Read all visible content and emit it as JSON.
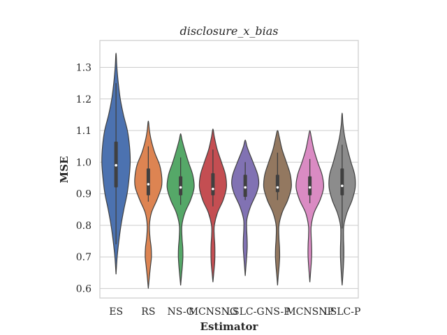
{
  "chart_data": {
    "type": "violin",
    "title": "disclosure_x_bias",
    "xlabel": "Estimator",
    "ylabel": "MSE",
    "ylim": [
      0.57,
      1.385
    ],
    "yticks": [
      0.6,
      0.7,
      0.8,
      0.9,
      1.0,
      1.1,
      1.2,
      1.3
    ],
    "ytick_labels": [
      "0.6",
      "0.7",
      "0.8",
      "0.9",
      "1.0",
      "1.1",
      "1.2",
      "1.3"
    ],
    "grid": true,
    "categories": [
      "ES",
      "RS",
      "NS-G",
      "MCNSNG",
      "LSLC-G",
      "NS-P",
      "MCNSNP",
      "LSLC-P"
    ],
    "colors": [
      "#4c72b0",
      "#dd8452",
      "#55a868",
      "#c44e52",
      "#8172b3",
      "#937860",
      "#da8bc3",
      "#8c8c8c"
    ],
    "violins": [
      {
        "min": 0.645,
        "max": 1.345,
        "q1": 0.92,
        "median": 0.99,
        "q3": 1.065,
        "w_low": 0.74,
        "w_high": 1.25,
        "profile": [
          [
            0.645,
            0.0
          ],
          [
            0.7,
            0.08
          ],
          [
            0.75,
            0.2
          ],
          [
            0.8,
            0.35
          ],
          [
            0.85,
            0.55
          ],
          [
            0.9,
            0.78
          ],
          [
            0.95,
            0.92
          ],
          [
            1.0,
            1.0
          ],
          [
            1.05,
            0.95
          ],
          [
            1.1,
            0.8
          ],
          [
            1.15,
            0.52
          ],
          [
            1.2,
            0.3
          ],
          [
            1.25,
            0.16
          ],
          [
            1.3,
            0.06
          ],
          [
            1.345,
            0.0
          ]
        ]
      },
      {
        "min": 0.6,
        "max": 1.13,
        "q1": 0.895,
        "median": 0.93,
        "q3": 0.98,
        "w_low": 0.875,
        "w_high": 1.05,
        "profile": [
          [
            0.6,
            0.0
          ],
          [
            0.63,
            0.06
          ],
          [
            0.67,
            0.15
          ],
          [
            0.7,
            0.22
          ],
          [
            0.73,
            0.2
          ],
          [
            0.76,
            0.12
          ],
          [
            0.8,
            0.08
          ],
          [
            0.84,
            0.22
          ],
          [
            0.88,
            0.6
          ],
          [
            0.92,
            0.92
          ],
          [
            0.95,
            0.95
          ],
          [
            0.99,
            0.8
          ],
          [
            1.03,
            0.45
          ],
          [
            1.07,
            0.2
          ],
          [
            1.1,
            0.08
          ],
          [
            1.13,
            0.0
          ]
        ]
      },
      {
        "min": 0.61,
        "max": 1.09,
        "q1": 0.895,
        "median": 0.92,
        "q3": 0.955,
        "w_low": 0.865,
        "w_high": 1.015,
        "profile": [
          [
            0.61,
            0.0
          ],
          [
            0.64,
            0.06
          ],
          [
            0.67,
            0.12
          ],
          [
            0.7,
            0.16
          ],
          [
            0.73,
            0.15
          ],
          [
            0.76,
            0.1
          ],
          [
            0.8,
            0.09
          ],
          [
            0.84,
            0.3
          ],
          [
            0.88,
            0.7
          ],
          [
            0.92,
            0.95
          ],
          [
            0.96,
            0.85
          ],
          [
            1.0,
            0.55
          ],
          [
            1.04,
            0.28
          ],
          [
            1.07,
            0.1
          ],
          [
            1.09,
            0.0
          ]
        ]
      },
      {
        "min": 0.62,
        "max": 1.105,
        "q1": 0.895,
        "median": 0.915,
        "q3": 0.965,
        "w_low": 0.86,
        "w_high": 1.04,
        "profile": [
          [
            0.62,
            0.0
          ],
          [
            0.65,
            0.06
          ],
          [
            0.68,
            0.12
          ],
          [
            0.71,
            0.14
          ],
          [
            0.74,
            0.13
          ],
          [
            0.77,
            0.09
          ],
          [
            0.8,
            0.1
          ],
          [
            0.84,
            0.32
          ],
          [
            0.88,
            0.72
          ],
          [
            0.92,
            0.95
          ],
          [
            0.96,
            0.88
          ],
          [
            1.0,
            0.6
          ],
          [
            1.04,
            0.3
          ],
          [
            1.08,
            0.1
          ],
          [
            1.105,
            0.0
          ]
        ]
      },
      {
        "min": 0.64,
        "max": 1.07,
        "q1": 0.89,
        "median": 0.92,
        "q3": 0.96,
        "w_low": 0.88,
        "w_high": 1.0,
        "profile": [
          [
            0.64,
            0.0
          ],
          [
            0.67,
            0.05
          ],
          [
            0.7,
            0.1
          ],
          [
            0.73,
            0.14
          ],
          [
            0.76,
            0.13
          ],
          [
            0.79,
            0.1
          ],
          [
            0.82,
            0.12
          ],
          [
            0.86,
            0.38
          ],
          [
            0.9,
            0.78
          ],
          [
            0.93,
            0.95
          ],
          [
            0.96,
            0.88
          ],
          [
            1.0,
            0.55
          ],
          [
            1.03,
            0.28
          ],
          [
            1.05,
            0.12
          ],
          [
            1.07,
            0.0
          ]
        ]
      },
      {
        "min": 0.61,
        "max": 1.1,
        "q1": 0.905,
        "median": 0.92,
        "q3": 0.96,
        "w_low": 0.88,
        "w_high": 1.03,
        "profile": [
          [
            0.61,
            0.0
          ],
          [
            0.64,
            0.05
          ],
          [
            0.67,
            0.11
          ],
          [
            0.7,
            0.15
          ],
          [
            0.73,
            0.14
          ],
          [
            0.76,
            0.1
          ],
          [
            0.8,
            0.1
          ],
          [
            0.84,
            0.32
          ],
          [
            0.88,
            0.72
          ],
          [
            0.92,
            0.97
          ],
          [
            0.96,
            0.9
          ],
          [
            1.0,
            0.62
          ],
          [
            1.04,
            0.32
          ],
          [
            1.08,
            0.12
          ],
          [
            1.1,
            0.0
          ]
        ]
      },
      {
        "min": 0.62,
        "max": 1.1,
        "q1": 0.895,
        "median": 0.92,
        "q3": 0.955,
        "w_low": 0.87,
        "w_high": 1.01,
        "profile": [
          [
            0.62,
            0.0
          ],
          [
            0.65,
            0.05
          ],
          [
            0.68,
            0.1
          ],
          [
            0.71,
            0.13
          ],
          [
            0.74,
            0.12
          ],
          [
            0.77,
            0.09
          ],
          [
            0.8,
            0.1
          ],
          [
            0.84,
            0.3
          ],
          [
            0.88,
            0.72
          ],
          [
            0.92,
            0.97
          ],
          [
            0.96,
            0.86
          ],
          [
            1.0,
            0.55
          ],
          [
            1.04,
            0.28
          ],
          [
            1.08,
            0.1
          ],
          [
            1.1,
            0.0
          ]
        ]
      },
      {
        "min": 0.61,
        "max": 1.155,
        "q1": 0.895,
        "median": 0.925,
        "q3": 0.98,
        "w_low": 0.79,
        "w_high": 1.055,
        "profile": [
          [
            0.61,
            0.0
          ],
          [
            0.64,
            0.05
          ],
          [
            0.67,
            0.09
          ],
          [
            0.7,
            0.12
          ],
          [
            0.73,
            0.12
          ],
          [
            0.76,
            0.1
          ],
          [
            0.8,
            0.12
          ],
          [
            0.84,
            0.34
          ],
          [
            0.88,
            0.7
          ],
          [
            0.92,
            0.92
          ],
          [
            0.96,
            0.88
          ],
          [
            1.0,
            0.62
          ],
          [
            1.04,
            0.38
          ],
          [
            1.08,
            0.18
          ],
          [
            1.12,
            0.06
          ],
          [
            1.155,
            0.0
          ]
        ]
      }
    ]
  }
}
